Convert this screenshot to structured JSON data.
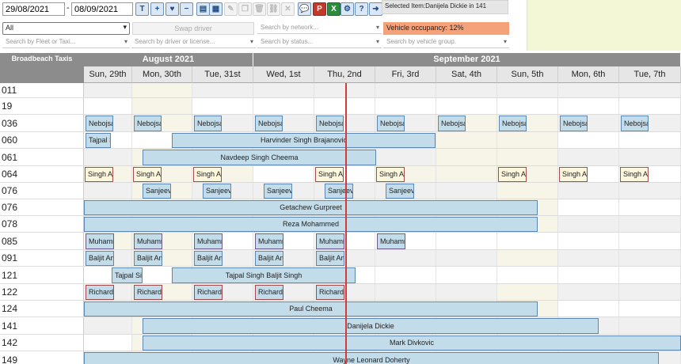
{
  "toolbar": {
    "start_date": "29/08/2021",
    "end_date": "08/09/2021",
    "date_separator": "-",
    "buttons": [
      {
        "name": "text-button",
        "glyph": "T",
        "style": ""
      },
      {
        "name": "zoom-in-button",
        "glyph": "+",
        "style": ""
      },
      {
        "name": "favourite-button",
        "glyph": "♥",
        "style": ""
      },
      {
        "name": "zoom-out-button",
        "glyph": "−",
        "style": ""
      },
      {
        "name": "print-button",
        "glyph": "▤",
        "style": ""
      },
      {
        "name": "calendar-button",
        "glyph": "▦",
        "style": ""
      },
      {
        "name": "edit-button",
        "glyph": "✎",
        "style": "disabled"
      },
      {
        "name": "copy-button",
        "glyph": "❐",
        "style": "disabled"
      },
      {
        "name": "delete-button",
        "glyph": "🗑",
        "style": "disabled"
      },
      {
        "name": "link-button",
        "glyph": "⛓",
        "style": "disabled"
      },
      {
        "name": "unlink-button",
        "glyph": "✕",
        "style": "disabled"
      },
      {
        "name": "chat-button",
        "glyph": "💬",
        "style": ""
      },
      {
        "name": "pdf-export-button",
        "glyph": "P",
        "style": "red"
      },
      {
        "name": "excel-export-button",
        "glyph": "X",
        "style": "green"
      },
      {
        "name": "settings-button",
        "glyph": "⚙",
        "style": ""
      },
      {
        "name": "help-button",
        "glyph": "?",
        "style": ""
      },
      {
        "name": "logout-button",
        "glyph": "➜",
        "style": ""
      }
    ],
    "selected_item": "Selected Item:Danijela Dickie in 141",
    "select_value": "All",
    "swap_driver_label": "Swap driver",
    "filters": {
      "network": "Search by network...",
      "fleet": "Search by Fleet or Taxi...",
      "driver": "Search by driver or license...",
      "status": "Search by status...",
      "vehicle_group": "Search by vehicle group."
    },
    "occupancy": "Vehicle occupancy: 12%"
  },
  "calendar": {
    "corner_label": "Broadbeach Taxis",
    "months": [
      {
        "label": "August 2021"
      },
      {
        "label": "September 2021"
      }
    ],
    "days": [
      "Sun, 29th",
      "Mon, 30th",
      "Tue, 31st",
      "Wed, 1st",
      "Thu, 2nd",
      "Fri, 3rd",
      "Sat, 4th",
      "Sun, 5th",
      "Mon, 6th",
      "Tue, 7th"
    ],
    "rows": [
      {
        "label": "011"
      },
      {
        "label": "19"
      },
      {
        "label": "036"
      },
      {
        "label": "060"
      },
      {
        "label": "061"
      },
      {
        "label": "064"
      },
      {
        "label": "076"
      },
      {
        "label": "076"
      },
      {
        "label": "078"
      },
      {
        "label": "085"
      },
      {
        "label": "091"
      },
      {
        "label": "121"
      },
      {
        "label": "122"
      },
      {
        "label": "124"
      },
      {
        "label": "141"
      },
      {
        "label": "142"
      },
      {
        "label": "149"
      }
    ],
    "bookings": {
      "r036": "Nebojsa",
      "r060a": "Tajpal S",
      "r060b": "Harvinder Singh Brajanovic",
      "r061": "Navdeep Singh Cheema",
      "r064": "Singh Ab",
      "r076": "Sanjeev",
      "r076b": "Getachew Gurpreet",
      "r078": "Reza Mohammed",
      "r085": "Muhamm",
      "r091": "Baljit Am",
      "r121a": "Tajpal Si",
      "r121b": "Tajpal Singh Baljit Singh",
      "r122": "Richard",
      "r124": "Paul Cheema",
      "r141": "Danijela Dickie",
      "r142": "Mark Divkovic",
      "r149": "Wayne Leonard Doherty"
    }
  },
  "colors": {
    "bar_fill": "#c3dcea",
    "bar_border": "#5c87b3",
    "today_line": "#d53a3a",
    "occupancy_bg": "#f4a27a",
    "header_grey": "#8c8c8c"
  }
}
